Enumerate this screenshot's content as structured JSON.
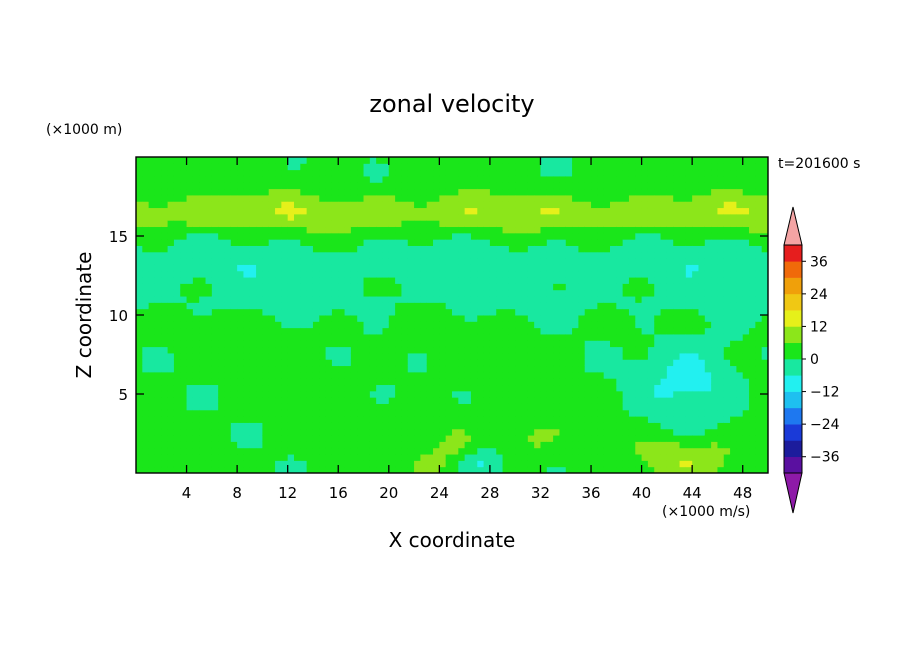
{
  "chart_data": {
    "type": "heatmap",
    "title": "zonal velocity",
    "xlabel": "X coordinate",
    "ylabel": "Z coordinate",
    "x_unit_label": "(×1000 m/s)",
    "y_unit_label": "(×1000 m)",
    "time_label": "t=201600 s",
    "xlim": [
      0,
      50
    ],
    "ylim": [
      0,
      20
    ],
    "x_ticks": [
      4,
      8,
      12,
      16,
      20,
      24,
      28,
      32,
      36,
      40,
      44,
      48
    ],
    "y_ticks": [
      5,
      10,
      15
    ],
    "x_tick_labels": [
      "4",
      "8",
      "12",
      "16",
      "20",
      "24",
      "28",
      "32",
      "36",
      "40",
      "44",
      "48"
    ],
    "y_tick_labels": [
      "5",
      "10",
      "15"
    ],
    "colorbar": {
      "levels": [
        -42,
        -36,
        -30,
        -24,
        -18,
        -12,
        -6,
        0,
        6,
        12,
        18,
        24,
        30,
        36,
        42
      ],
      "tick_values": [
        -36,
        -24,
        -12,
        0,
        12,
        24,
        36
      ],
      "tick_labels": [
        "−36",
        "−24",
        "−12",
        "0",
        "12",
        "24",
        "36"
      ],
      "colors": [
        "#5a10a0",
        "#1c1c9c",
        "#1a3ad8",
        "#1e78f0",
        "#1ec0f0",
        "#22f0f0",
        "#18e8a0",
        "#1ae61a",
        "#8ce61a",
        "#e6f01a",
        "#f0c814",
        "#f0a00a",
        "#f06a0a",
        "#e61e1e"
      ],
      "under_color": "#8e1aa8",
      "over_color": "#f4a4a4"
    },
    "field_features": [
      {
        "x": 25,
        "z": 1.5,
        "radius_x": 2.5,
        "radius_z": 2.0,
        "u": 6
      },
      {
        "x": 44,
        "z": 6.0,
        "radius_x": 4.0,
        "radius_z": 3.0,
        "u": -10
      },
      {
        "x": 44,
        "z": 1.0,
        "radius_x": 4.0,
        "radius_z": 1.5,
        "u": 10
      },
      {
        "x": 27,
        "z": 0.5,
        "radius_x": 2.0,
        "radius_z": 1.0,
        "u": -9
      },
      {
        "x": 31,
        "z": 2.0,
        "radius_x": 2.0,
        "radius_z": 1.5,
        "u": 5
      }
    ]
  }
}
